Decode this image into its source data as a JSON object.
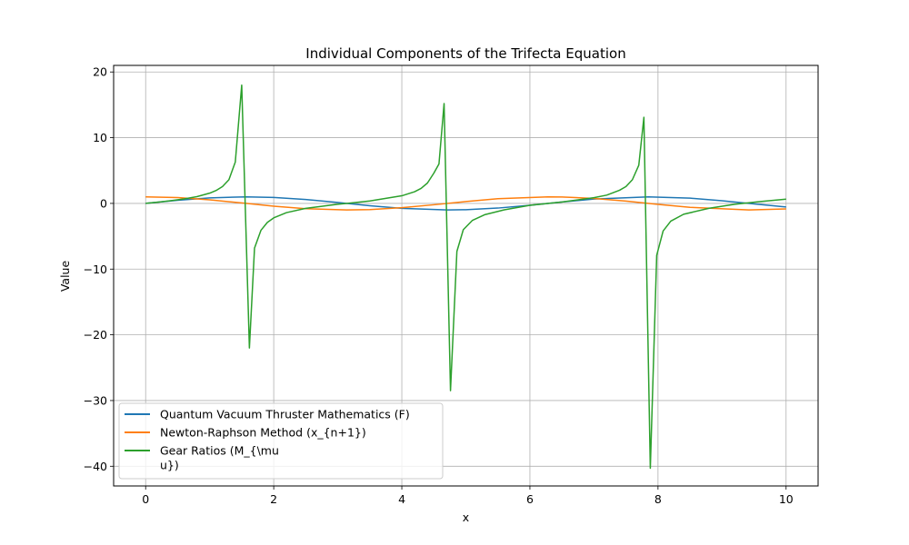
{
  "chart_data": {
    "type": "line",
    "title": "Individual Components of the Trifecta Equation",
    "xlabel": "x",
    "ylabel": "Value",
    "xlim": [
      -0.5,
      10.5
    ],
    "ylim": [
      -43,
      21
    ],
    "xticks": [
      0,
      2,
      4,
      6,
      8,
      10
    ],
    "yticks": [
      -40,
      -30,
      -20,
      -10,
      0,
      10,
      20
    ],
    "xtick_labels": [
      "0",
      "2",
      "4",
      "6",
      "8",
      "10"
    ],
    "ytick_labels": [
      "−40",
      "−30",
      "−20",
      "−10",
      "0",
      "10",
      "20"
    ],
    "grid": true,
    "legend_position": "lower-left",
    "series": [
      {
        "name": "Quantum Vacuum Thruster Mathematics (F)",
        "color": "#1f77b4",
        "x": [
          0,
          0.5,
          1,
          1.57,
          2,
          2.5,
          3,
          3.5,
          4,
          4.71,
          5,
          5.5,
          6,
          6.5,
          7,
          7.85,
          8.5,
          9,
          9.5,
          10
        ],
        "y": [
          0,
          0.48,
          0.84,
          1.0,
          0.91,
          0.6,
          0.14,
          -0.35,
          -0.76,
          -1.0,
          -0.96,
          -0.71,
          -0.28,
          0.22,
          0.66,
          1.0,
          0.8,
          0.41,
          -0.08,
          -0.54
        ]
      },
      {
        "name": "Newton-Raphson Method (x_{n+1})",
        "color": "#ff7f0e",
        "x": [
          0,
          0.5,
          1,
          1.57,
          2,
          2.5,
          3.14,
          3.5,
          4,
          4.5,
          5,
          5.5,
          6.28,
          6.5,
          7,
          7.5,
          8,
          8.5,
          9.42,
          10
        ],
        "y": [
          1.0,
          0.88,
          0.54,
          0.0,
          -0.42,
          -0.8,
          -1.0,
          -0.94,
          -0.65,
          -0.21,
          0.28,
          0.71,
          1.0,
          0.98,
          0.75,
          0.35,
          -0.15,
          -0.6,
          -1.0,
          -0.84
        ]
      },
      {
        "name": "Gear Ratios (M_{\\mu\nu})",
        "color": "#2ca02c",
        "x": [
          0,
          0.2,
          0.4,
          0.6,
          0.8,
          1.0,
          1.1,
          1.2,
          1.3,
          1.4,
          1.5,
          1.62,
          1.7,
          1.8,
          1.9,
          2.0,
          2.2,
          2.5,
          3.0,
          3.5,
          4.0,
          4.2,
          4.3,
          4.4,
          4.5,
          4.58,
          4.66,
          4.76,
          4.86,
          4.96,
          5.1,
          5.3,
          5.6,
          6.0,
          6.5,
          7.0,
          7.2,
          7.4,
          7.5,
          7.6,
          7.7,
          7.78,
          7.88,
          7.98,
          8.08,
          8.2,
          8.4,
          8.8,
          9.2,
          9.6,
          10.0
        ],
        "y": [
          0,
          0.2,
          0.42,
          0.68,
          1.03,
          1.56,
          1.96,
          2.57,
          3.6,
          6.3,
          18.0,
          -22.0,
          -6.8,
          -4.1,
          -2.9,
          -2.2,
          -1.4,
          -0.75,
          -0.14,
          0.37,
          1.16,
          1.78,
          2.28,
          3.1,
          4.6,
          6.0,
          15.2,
          -28.5,
          -7.3,
          -4.0,
          -2.6,
          -1.7,
          -0.98,
          -0.29,
          0.22,
          0.87,
          1.26,
          2.0,
          2.56,
          3.6,
          5.8,
          13.1,
          -40.3,
          -7.9,
          -4.2,
          -2.7,
          -1.65,
          -0.74,
          -0.13,
          0.28,
          0.65
        ]
      }
    ]
  }
}
